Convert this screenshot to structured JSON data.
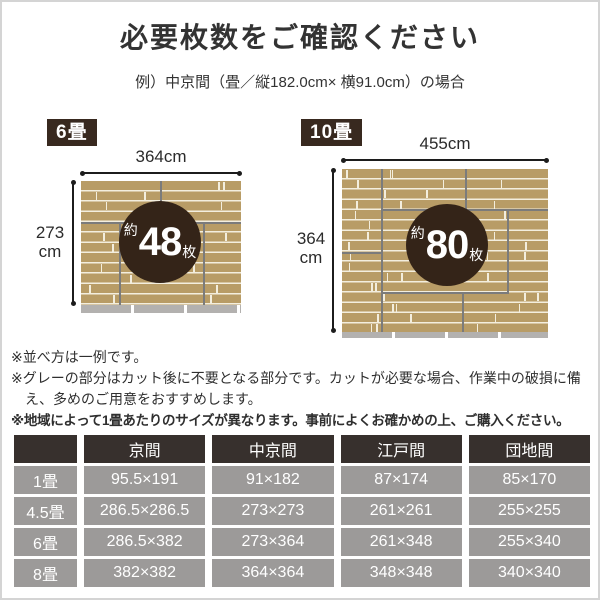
{
  "page": {
    "title": "必要枚数をご確認ください",
    "subtitle": "例）中京間（畳／縦182.0cm× 横91.0cm）の場合"
  },
  "diagrams": [
    {
      "label": "6畳",
      "width_label": "364cm",
      "height_value": "273",
      "height_unit": "cm",
      "count_prefix": "約",
      "count_value": "48",
      "count_suffix": "枚"
    },
    {
      "label": "10畳",
      "width_label": "455cm",
      "height_value": "364",
      "height_unit": "cm",
      "count_prefix": "約",
      "count_value": "80",
      "count_suffix": "枚"
    }
  ],
  "notes": [
    "※並べ方は一例です。",
    "※グレーの部分はカット後に不要となる部分です。カットが必要な場合、作業中の破損に備え、多めのご用意をおすすめします。",
    "※地域によって1畳あたりのサイズが異なります。事前によくお確かめの上、ご購入ください。"
  ],
  "table": {
    "corner": "",
    "headers": [
      "京間",
      "中京間",
      "江戸間",
      "団地間"
    ],
    "rows": [
      {
        "label": "1畳",
        "values": [
          "95.5×191",
          "91×182",
          "87×174",
          "85×170"
        ]
      },
      {
        "label": "4.5畳",
        "values": [
          "286.5×286.5",
          "273×273",
          "261×261",
          "255×255"
        ]
      },
      {
        "label": "6畳",
        "values": [
          "286.5×382",
          "273×364",
          "261×348",
          "255×340"
        ]
      },
      {
        "label": "8畳",
        "values": [
          "382×382",
          "364×364",
          "348×348",
          "340×340"
        ]
      }
    ]
  },
  "colors": {
    "wood": "#b89c66",
    "wood_gap": "#f3eede",
    "cut_gray": "#b3b1af",
    "line_gray": "#7b7b7b",
    "circle_brown": "#342418",
    "badge_brown": "#38291f",
    "table_header": "#37302d",
    "table_cell": "#9c9a99",
    "text_dark": "#333333"
  }
}
